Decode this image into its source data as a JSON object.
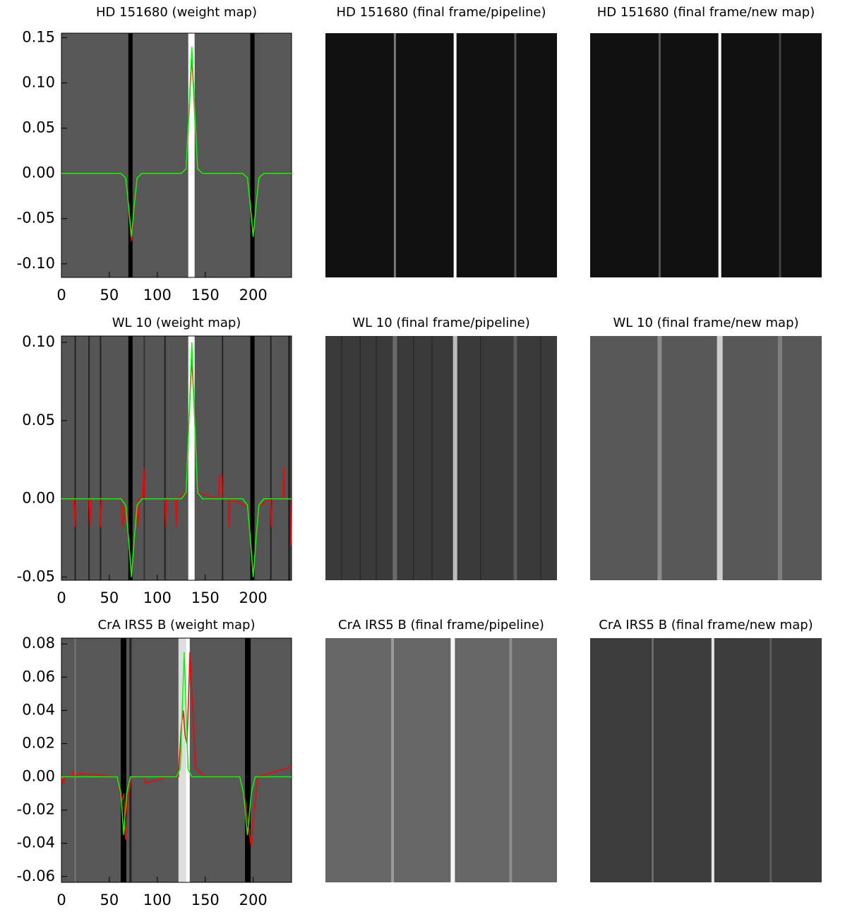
{
  "chart_data": [
    {
      "type": "line",
      "title": "HD 151680 (weight map)",
      "xlim": [
        0,
        240
      ],
      "xticks": [
        0,
        50,
        100,
        150,
        200
      ],
      "ylim": [
        -0.115,
        0.155
      ],
      "yticks": [
        {
          "value": -0.1,
          "label": "-0.10"
        },
        -0.05,
        {
          "value": 0,
          "label": "0.00"
        },
        0.05,
        {
          "value": 0.1,
          "label": "0.10"
        },
        0.15
      ],
      "series": [
        {
          "color": "#ff0000",
          "x": [
            0,
            62,
            67,
            70,
            73,
            76,
            79,
            84,
            125,
            130,
            133,
            136,
            139,
            142,
            147,
            189,
            194,
            197,
            200,
            203,
            206,
            211,
            240
          ],
          "values": [
            0,
            0,
            -0.005,
            -0.037,
            -0.075,
            -0.037,
            -0.005,
            0,
            0,
            0.005,
            0.065,
            0.13,
            0.065,
            0.005,
            0,
            0,
            -0.005,
            -0.034,
            -0.068,
            -0.034,
            -0.005,
            0,
            0
          ]
        },
        {
          "color": "#00ff00",
          "x": [
            0,
            62,
            67,
            70,
            73,
            76,
            79,
            84,
            125,
            130,
            133,
            136,
            139,
            142,
            147,
            189,
            194,
            197,
            200,
            203,
            206,
            211,
            240
          ],
          "values": [
            0,
            0,
            -0.005,
            -0.035,
            -0.07,
            -0.035,
            -0.005,
            0,
            0,
            0.005,
            0.07,
            0.14,
            0.07,
            0.005,
            0,
            0,
            -0.005,
            -0.035,
            -0.07,
            -0.035,
            -0.005,
            0,
            0
          ]
        }
      ]
    },
    {
      "type": "image",
      "title": "HD 151680 (final frame/pipeline)"
    },
    {
      "type": "image",
      "title": "HD 151680 (final frame/new map)"
    },
    {
      "type": "line",
      "title": "WL 10 (weight map)",
      "xlim": [
        0,
        240
      ],
      "xticks": [
        0,
        50,
        100,
        150,
        200
      ],
      "ylim": [
        -0.052,
        0.104
      ],
      "yticks": [
        -0.05,
        {
          "value": 0,
          "label": "0.00"
        },
        0.05,
        {
          "value": 0.1,
          "label": "0.10"
        }
      ],
      "series": [
        {
          "color": "#ff0000",
          "x": [
            0,
            13,
            14,
            15,
            29,
            30,
            31,
            40,
            41,
            42,
            62,
            64,
            66,
            70,
            73,
            76,
            79,
            80,
            81,
            85,
            86,
            87,
            108,
            109,
            110,
            119,
            120,
            121,
            130,
            133,
            136,
            139,
            142,
            164,
            165,
            166,
            167,
            168,
            174,
            175,
            176,
            194,
            197,
            200,
            203,
            206,
            218,
            219,
            220,
            231,
            232,
            233,
            239,
            240
          ],
          "values": [
            0,
            0,
            -0.018,
            0,
            0,
            -0.018,
            0,
            0,
            -0.018,
            0,
            0,
            -0.018,
            -0.005,
            -0.025,
            -0.048,
            -0.025,
            -0.005,
            -0.018,
            0,
            0,
            0.02,
            0,
            0,
            -0.018,
            0,
            0,
            -0.018,
            0,
            0.004,
            0.05,
            0.09,
            0.05,
            0.004,
            0,
            0.015,
            0.015,
            0.015,
            0,
            0,
            -0.018,
            0,
            -0.005,
            -0.025,
            -0.05,
            -0.025,
            -0.005,
            0,
            -0.018,
            0,
            0,
            0.02,
            0,
            0,
            -0.03
          ]
        },
        {
          "color": "#00ff00",
          "x": [
            0,
            62,
            67,
            70,
            73,
            76,
            79,
            84,
            125,
            130,
            133,
            136,
            139,
            142,
            147,
            189,
            194,
            197,
            200,
            203,
            206,
            211,
            240
          ],
          "values": [
            0,
            0,
            -0.004,
            -0.025,
            -0.05,
            -0.025,
            -0.004,
            0,
            0,
            0.004,
            0.05,
            0.1,
            0.05,
            0.004,
            0,
            0,
            -0.004,
            -0.025,
            -0.05,
            -0.025,
            -0.004,
            0,
            0
          ]
        }
      ]
    },
    {
      "type": "image",
      "title": "WL 10 (final frame/pipeline)"
    },
    {
      "type": "image",
      "title": "WL 10 (final frame/new map)"
    },
    {
      "type": "line",
      "title": "CrA IRS5 B (weight map)",
      "xlim": [
        0,
        240
      ],
      "xticks": [
        0,
        50,
        100,
        150,
        200
      ],
      "ylim": [
        -0.0635,
        0.0835
      ],
      "yticks": [
        -0.06,
        -0.04,
        -0.02,
        {
          "value": 0,
          "label": "0.00"
        },
        0.02,
        0.04,
        0.06,
        0.08
      ],
      "series": [
        {
          "color": "#ff0000",
          "x": [
            0,
            2,
            4,
            10,
            12,
            14,
            20,
            58,
            63,
            65,
            67,
            69,
            73,
            86,
            88,
            110,
            122,
            125,
            127,
            129,
            131,
            134,
            137,
            140,
            150,
            186,
            192,
            195,
            198,
            201,
            205,
            240
          ],
          "values": [
            0,
            -0.004,
            0,
            0,
            0.003,
            0,
            0.002,
            0,
            -0.015,
            -0.01,
            -0.038,
            -0.015,
            0,
            0,
            -0.004,
            0,
            0,
            0.03,
            0.04,
            0.025,
            0.02,
            0.075,
            0.04,
            0.005,
            0,
            0,
            -0.015,
            -0.03,
            -0.042,
            -0.02,
            0,
            0.006
          ]
        },
        {
          "color": "#00ff00",
          "x": [
            0,
            58,
            62,
            65,
            68,
            72,
            120,
            124,
            126,
            128,
            130,
            132,
            136,
            186,
            190,
            194,
            198,
            202,
            240
          ],
          "values": [
            0,
            0,
            -0.01,
            -0.035,
            -0.01,
            0,
            0,
            0.005,
            0.04,
            0.075,
            0.04,
            0.005,
            0,
            0,
            -0.01,
            -0.035,
            -0.01,
            0,
            0
          ]
        }
      ]
    },
    {
      "type": "image",
      "title": "CrA IRS5 B (final frame/pipeline)"
    },
    {
      "type": "image",
      "title": "CrA IRS5 B (final frame/new map)"
    }
  ]
}
